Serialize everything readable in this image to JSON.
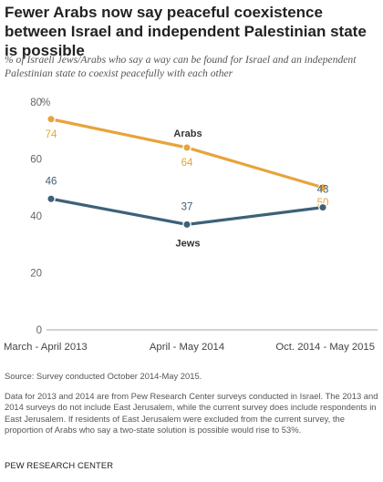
{
  "title": "Fewer Arabs now say peaceful coexistence between Israel and independent  Palestinian state is possible",
  "subtitle": "% of Israeli Jews/Arabs who say a way can be found for Israel and an independent Palestinian state to coexist peacefully with each other",
  "source": "Source: Survey conducted October 2014-May 2015.",
  "note": "Data for 2013 and 2014 are from Pew Research Center surveys conducted in Israel. The 2013 and 2014 surveys do not include East Jerusalem, while the current survey does include respondents in East Jerusalem. If residents of East Jerusalem were excluded from the current survey, the proportion of Arabs who say a two-state solution is possible would rise to 53%.",
  "credit": "PEW RESEARCH CENTER",
  "chart_data": {
    "type": "line",
    "categories": [
      "March - April 2013",
      "April - May 2014",
      "Oct. 2014 - May 2015"
    ],
    "series": [
      {
        "name": "Arabs",
        "values": [
          74,
          64,
          50
        ],
        "color": "#e8a33a"
      },
      {
        "name": "Jews",
        "values": [
          46,
          37,
          43
        ],
        "color": "#3e6179"
      }
    ],
    "yticks": [
      0,
      20,
      40,
      60,
      80
    ],
    "ylim": [
      0,
      80
    ],
    "unit_label": "%",
    "grid": false,
    "axis_color": "#a6a6a6",
    "label_color_arabs": "#e8a33a",
    "label_color_jews": "#3e6179"
  }
}
